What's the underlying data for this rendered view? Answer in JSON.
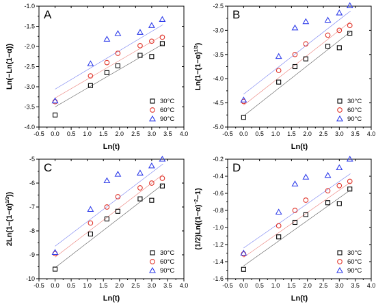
{
  "chart_data": [
    {
      "type": "scatter",
      "panel_label": "A",
      "ylabel": "Ln(−Ln(1−α))",
      "xlabel": "Ln(t)",
      "xlim": [
        -0.5,
        4.0
      ],
      "xticks": [
        "-0.5",
        "0.0",
        "0.5",
        "1.0",
        "1.5",
        "2.0",
        "2.5",
        "3.0",
        "3.5",
        "4.0"
      ],
      "ylim": [
        -4.0,
        -1.0
      ],
      "yticks": [
        "-4.0",
        "-3.5",
        "-3.0",
        "-2.5",
        "-2.0",
        "-1.5",
        "-1.0"
      ],
      "legend_position": "bottom-right",
      "series": [
        {
          "name": "30°C",
          "marker": "square",
          "color": "#000000",
          "x": [
            0.0,
            1.1,
            1.61,
            1.95,
            2.64,
            3.0,
            3.33
          ],
          "y": [
            -3.7,
            -2.97,
            -2.65,
            -2.48,
            -2.22,
            -2.25,
            -1.93
          ],
          "fit": [
            -3.5,
            -1.94
          ]
        },
        {
          "name": "60°C",
          "marker": "circle",
          "color": "#e0352b",
          "x": [
            0.0,
            1.1,
            1.61,
            1.95,
            2.64,
            3.0,
            3.33
          ],
          "y": [
            -3.37,
            -2.73,
            -2.4,
            -2.17,
            -1.98,
            -1.87,
            -1.77
          ],
          "fit": [
            -3.28,
            -1.72
          ]
        },
        {
          "name": "90°C",
          "marker": "triangle",
          "color": "#2f3dea",
          "x": [
            0.0,
            1.1,
            1.61,
            1.95,
            2.64,
            3.0,
            3.33
          ],
          "y": [
            -3.35,
            -2.43,
            -1.82,
            -1.68,
            -1.65,
            -1.48,
            -1.33
          ],
          "fit": [
            -3.06,
            -1.46
          ]
        }
      ]
    },
    {
      "type": "scatter",
      "panel_label": "B",
      "ylabel": "Ln(1−(1−α)",
      "ylabel_sup": "1/3",
      "ylabel_end": ")",
      "xlabel": "Ln(t)",
      "xlim": [
        -0.5,
        4.0
      ],
      "xticks": [
        "-0.5",
        "0.0",
        "0.5",
        "1.0",
        "1.5",
        "2.0",
        "2.5",
        "3.0",
        "3.5",
        "4.0"
      ],
      "ylim": [
        -5.0,
        -2.5
      ],
      "yticks": [
        "-5.0",
        "-4.5",
        "-4.0",
        "-3.5",
        "-3.0",
        "-2.5"
      ],
      "legend_position": "bottom-right",
      "series": [
        {
          "name": "30°C",
          "marker": "square",
          "color": "#000000",
          "x": [
            0.0,
            1.1,
            1.61,
            1.95,
            2.64,
            3.0,
            3.33
          ],
          "y": [
            -4.8,
            -4.07,
            -3.75,
            -3.59,
            -3.33,
            -3.36,
            -3.06
          ],
          "fit": [
            -4.77,
            -3.03
          ]
        },
        {
          "name": "60°C",
          "marker": "circle",
          "color": "#e0352b",
          "x": [
            0.0,
            1.1,
            1.61,
            1.95,
            2.64,
            3.0,
            3.33
          ],
          "y": [
            -4.47,
            -3.83,
            -3.5,
            -3.28,
            -3.1,
            -3.0,
            -2.9
          ],
          "fit": [
            -4.55,
            -2.82
          ]
        },
        {
          "name": "90°C",
          "marker": "triangle",
          "color": "#2f3dea",
          "x": [
            0.0,
            1.1,
            1.61,
            1.95,
            2.64,
            3.0,
            3.33
          ],
          "y": [
            -4.44,
            -3.54,
            -2.95,
            -2.82,
            -2.79,
            -2.64,
            -2.49
          ],
          "fit": [
            -4.32,
            -2.6
          ]
        }
      ]
    },
    {
      "type": "scatter",
      "panel_label": "C",
      "ylabel": "2Ln(1−(1−α)",
      "ylabel_sup": "1/3",
      "ylabel_end": "))",
      "xlabel": "Ln(t)",
      "xlim": [
        -0.5,
        4.0
      ],
      "xticks": [
        "-0.5",
        "0.0",
        "0.5",
        "1.0",
        "1.5",
        "2.0",
        "2.5",
        "3.0",
        "3.5",
        "4.0"
      ],
      "ylim": [
        -10,
        -5
      ],
      "yticks": [
        "-10",
        "-9",
        "-8",
        "-7",
        "-6",
        "-5"
      ],
      "legend_position": "bottom-right",
      "series": [
        {
          "name": "30°C",
          "marker": "square",
          "color": "#000000",
          "x": [
            0.0,
            1.1,
            1.61,
            1.95,
            2.64,
            3.0,
            3.33
          ],
          "y": [
            -9.6,
            -8.13,
            -7.5,
            -7.18,
            -6.66,
            -6.72,
            -6.12
          ],
          "fit": [
            -9.54,
            -6.05
          ]
        },
        {
          "name": "60°C",
          "marker": "circle",
          "color": "#e0352b",
          "x": [
            0.0,
            1.1,
            1.61,
            1.95,
            2.64,
            3.0,
            3.33
          ],
          "y": [
            -8.95,
            -7.67,
            -7.0,
            -6.57,
            -6.2,
            -6.0,
            -5.8
          ],
          "fit": [
            -9.1,
            -5.64
          ]
        },
        {
          "name": "90°C",
          "marker": "triangle",
          "color": "#2f3dea",
          "x": [
            0.0,
            1.1,
            1.61,
            1.95,
            2.64,
            3.0,
            3.33
          ],
          "y": [
            -8.9,
            -7.1,
            -5.9,
            -5.63,
            -5.58,
            -5.28,
            -5.0
          ],
          "fit": [
            -8.64,
            -5.2
          ]
        }
      ]
    },
    {
      "type": "scatter",
      "panel_label": "D",
      "ylabel": "(1/2)Ln((1−α)",
      "ylabel_sup": "−2",
      "ylabel_end": "−1)",
      "xlabel": "Ln(t)",
      "xlim": [
        -0.5,
        4.0
      ],
      "xticks": [
        "-0.5",
        "0.0",
        "0.5",
        "1.0",
        "1.5",
        "2.0",
        "2.5",
        "3.0",
        "3.5",
        "4.0"
      ],
      "ylim": [
        -1.6,
        -0.2
      ],
      "yticks": [
        "-1.6",
        "-1.4",
        "-1.2",
        "-1.0",
        "-0.8",
        "-0.6",
        "-0.4",
        "-0.2"
      ],
      "legend_position": "bottom-right",
      "series": [
        {
          "name": "30°C",
          "marker": "square",
          "color": "#000000",
          "x": [
            0.0,
            1.1,
            1.61,
            1.95,
            2.64,
            3.0,
            3.33
          ],
          "y": [
            -1.49,
            -1.11,
            -0.94,
            -0.85,
            -0.71,
            -0.72,
            -0.55
          ],
          "fit": [
            -1.45,
            -0.56
          ]
        },
        {
          "name": "60°C",
          "marker": "circle",
          "color": "#e0352b",
          "x": [
            0.0,
            1.1,
            1.61,
            1.95,
            2.64,
            3.0,
            3.33
          ],
          "y": [
            -1.31,
            -0.98,
            -0.8,
            -0.68,
            -0.57,
            -0.51,
            -0.46
          ],
          "fit": [
            -1.35,
            -0.47
          ]
        },
        {
          "name": "90°C",
          "marker": "triangle",
          "color": "#2f3dea",
          "x": [
            0.0,
            1.1,
            1.61,
            1.95,
            2.64,
            3.0,
            3.33
          ],
          "y": [
            -1.3,
            -0.82,
            -0.49,
            -0.41,
            -0.39,
            -0.3,
            -0.2
          ],
          "fit": [
            -1.24,
            -0.37
          ]
        }
      ]
    }
  ]
}
